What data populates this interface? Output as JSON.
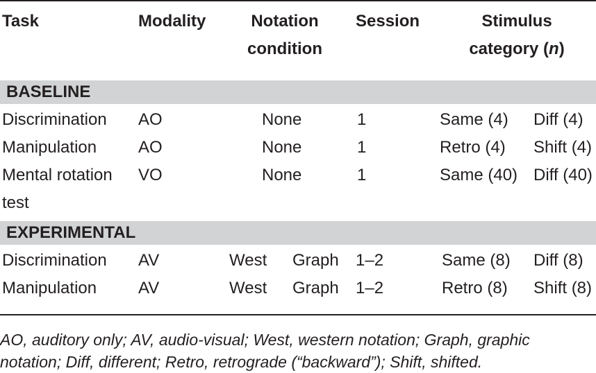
{
  "header": {
    "task": "Task",
    "modality": "Modality",
    "notation_line1": "Notation",
    "notation_line2": "condition",
    "session": "Session",
    "stimulus_line1": "Stimulus",
    "stimulus_line2_pre": "category (",
    "stimulus_line2_n": "n",
    "stimulus_line2_post": ")"
  },
  "sections": [
    {
      "title": "BASELINE",
      "rows": [
        {
          "task": "Discrimination",
          "modality": "AO",
          "notation": "None",
          "session": "1",
          "cat1": "Same (4)",
          "cat2": "Diff (4)"
        },
        {
          "task": "Manipulation",
          "modality": "AO",
          "notation": "None",
          "session": "1",
          "cat1": "Retro (4)",
          "cat2": "Shift (4)"
        },
        {
          "task": "Mental rotation",
          "task_line2": "test",
          "modality": "VO",
          "notation": "None",
          "session": "1",
          "cat1": "Same (40)",
          "cat2": "Diff (40)"
        }
      ]
    },
    {
      "title": "EXPERIMENTAL",
      "rows": [
        {
          "task": "Discrimination",
          "modality": "AV",
          "notation_a": "West",
          "notation_b": "Graph",
          "session": "1–2",
          "cat1": "Same (8)",
          "cat2": "Diff (8)"
        },
        {
          "task": "Manipulation",
          "modality": "AV",
          "notation_a": "West",
          "notation_b": "Graph",
          "session": "1–2",
          "cat1": "Retro (8)",
          "cat2": "Shift (8)"
        }
      ]
    }
  ],
  "footnote": {
    "line1": "AO, auditory only; AV, audio-visual; West, western notation; Graph, graphic",
    "line2": "notation; Diff, different; Retro, retrograde (“backward”); Shift, shifted."
  },
  "colors": {
    "band": "#d1d3d4",
    "text": "#231f20"
  }
}
